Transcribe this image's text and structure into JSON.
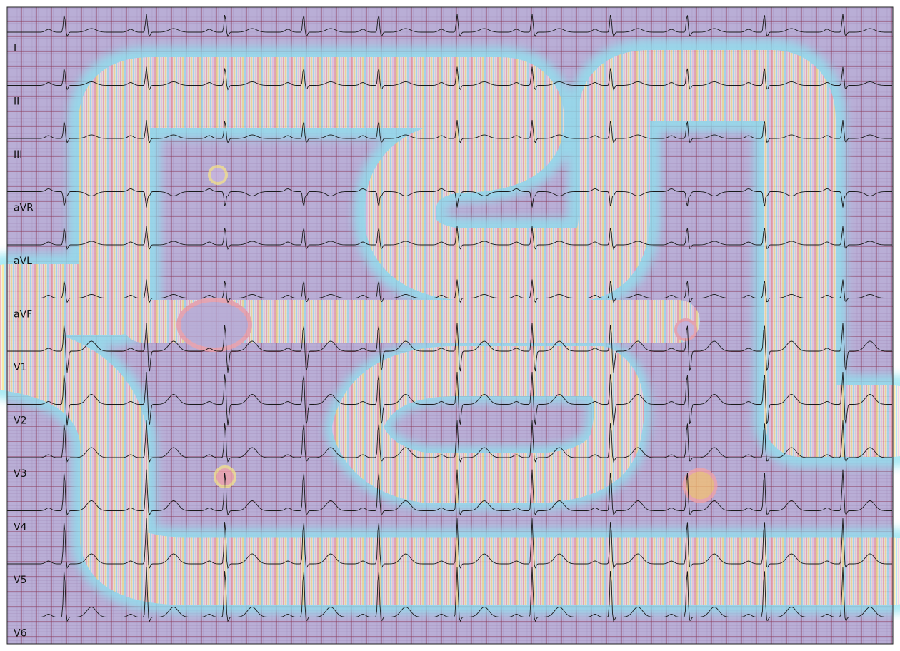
{
  "leads": [
    "I",
    "II",
    "III",
    "aVR",
    "aVL",
    "aVF",
    "V1",
    "V2",
    "V3",
    "V4",
    "V5",
    "V6"
  ]
}
